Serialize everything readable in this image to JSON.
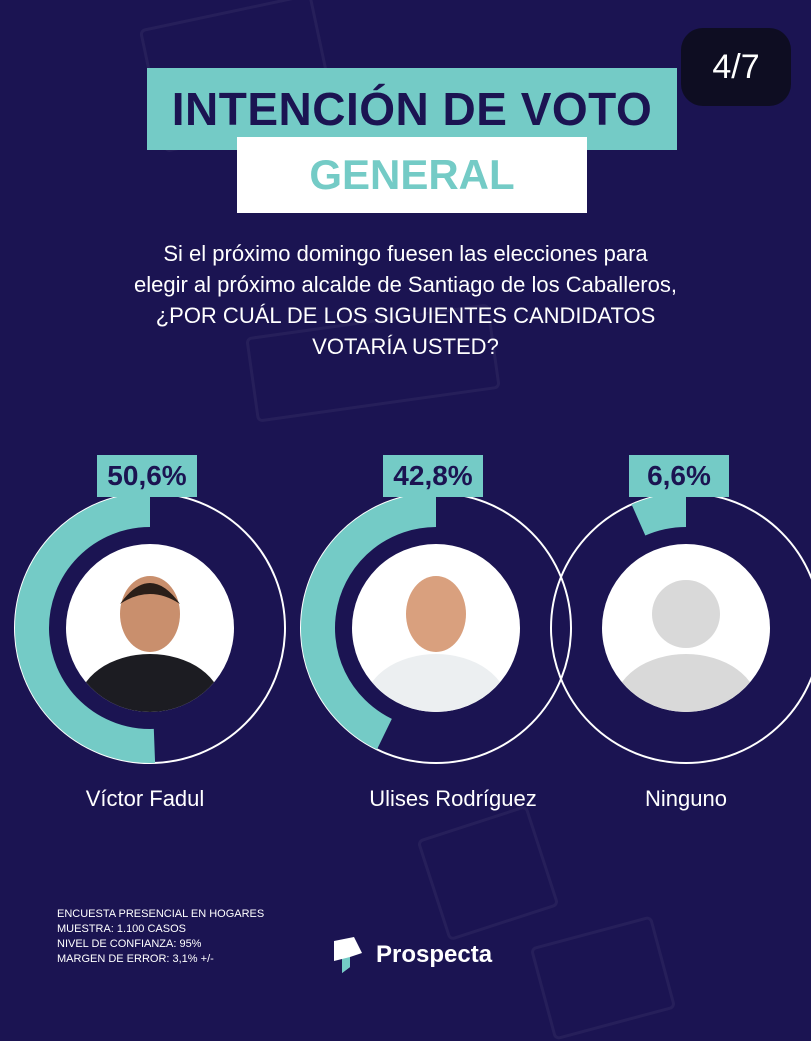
{
  "page_indicator": "4/7",
  "title": "INTENCIÓN DE VOTO",
  "subtitle": "GENERAL",
  "question": [
    "Si el próximo domingo fuesen las elecciones para",
    "elegir al próximo alcalde de Santiago de los Caballeros,",
    "¿POR CUÁL DE LOS SIGUIENTES CANDIDATOS",
    "VOTARÍA USTED?"
  ],
  "colors": {
    "background": "#1b1452",
    "accent": "#74cbc6",
    "ring_outline": "#ffffff"
  },
  "chart_data": {
    "type": "pie",
    "categories": [
      "Víctor Fadul",
      "Ulises Rodríguez",
      "Ninguno"
    ],
    "values": [
      50.6,
      42.8,
      6.6
    ],
    "value_labels": [
      "50,6%",
      "42,8%",
      "6,6%"
    ],
    "unit": "%"
  },
  "footnotes": [
    "ENCUESTA PRESENCIAL EN HOGARES",
    "MUESTRA: 1.100 CASOS",
    "NIVEL DE CONFIANZA: 95%",
    "MARGEN DE ERROR: 3,1% +/-"
  ],
  "brand": {
    "name": "Prospecta",
    "icon": "prospecta-logo-icon"
  }
}
